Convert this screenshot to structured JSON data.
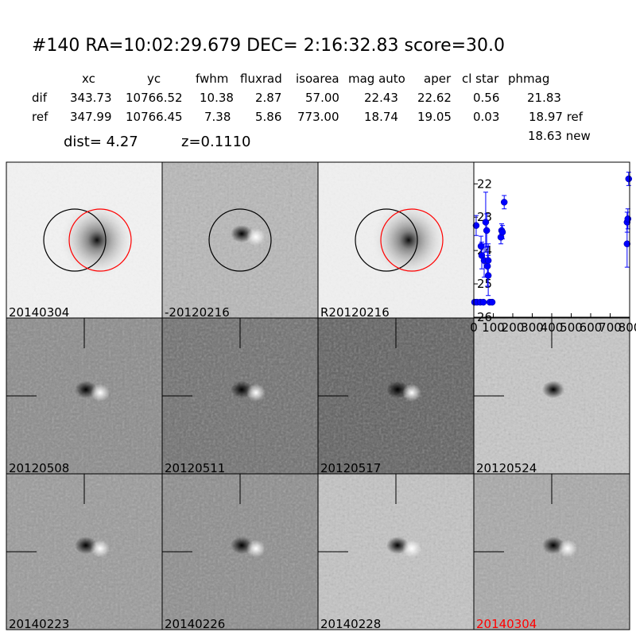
{
  "header": {
    "title": "#140   RA=10:02:29.679 DEC= 2:16:32.83       score=30.0"
  },
  "table": {
    "columns": [
      "xc",
      "yc",
      "fwhm",
      "fluxrad",
      "isoarea",
      "mag auto",
      "aper",
      "cl star",
      "phmag"
    ],
    "rows": [
      {
        "label": "dif",
        "cells": [
          "343.73",
          "10766.52",
          "10.38",
          "2.87",
          "57.00",
          "22.43",
          "22.62",
          "0.56",
          "21.83"
        ]
      },
      {
        "label": "ref",
        "cells": [
          "347.99",
          "10766.45",
          "7.38",
          "5.86",
          "773.00",
          "18.74",
          "19.05",
          "0.03",
          "18.97 ref"
        ]
      }
    ],
    "note": "18.63 new"
  },
  "info": {
    "dist": "dist=  4.27",
    "z": "z=0.1110"
  },
  "panels": [
    {
      "label": "20140304"
    },
    {
      "label": "-20120216"
    },
    {
      "label": "R20120216"
    },
    {
      "label": "20120508"
    },
    {
      "label": "20120511"
    },
    {
      "label": "20120517"
    },
    {
      "label": "20120524"
    },
    {
      "label": "20140223"
    },
    {
      "label": "20140226"
    },
    {
      "label": "20140228"
    },
    {
      "label": "20140304",
      "color": "#ff0000"
    }
  ],
  "chart_data": {
    "type": "scatter",
    "x": [
      4,
      16,
      33,
      12,
      37,
      41,
      49,
      53,
      61,
      66,
      70,
      74,
      74,
      82,
      94,
      139,
      143,
      147,
      156,
      787,
      787,
      791,
      795
    ],
    "series": [
      {
        "color": "#0000ff",
        "values": [
          25.55,
          25.55,
          25.55,
          23.25,
          23.87,
          24.15,
          25.55,
          24.3,
          23.15,
          23.4,
          24.47,
          24.3,
          24.75,
          25.55,
          25.55,
          23.6,
          23.4,
          23.45,
          22.55,
          23.8,
          23.15,
          23.05,
          21.85
        ],
        "errors": [
          0.05,
          0.05,
          0.05,
          0.3,
          0.3,
          0.4,
          0.05,
          0.5,
          0.9,
          0.5,
          0.6,
          0.5,
          0.6,
          0.05,
          0.05,
          0.2,
          0.2,
          0.2,
          0.2,
          0.7,
          0.3,
          0.3,
          0.2
        ]
      }
    ],
    "xlim": [
      0,
      800
    ],
    "ylim": [
      21.35,
      26
    ],
    "y_inverted": true,
    "xticks": [
      0,
      100,
      200,
      300,
      400,
      500,
      600,
      700,
      800
    ],
    "yticks": [
      22,
      23,
      24,
      25,
      26
    ]
  }
}
